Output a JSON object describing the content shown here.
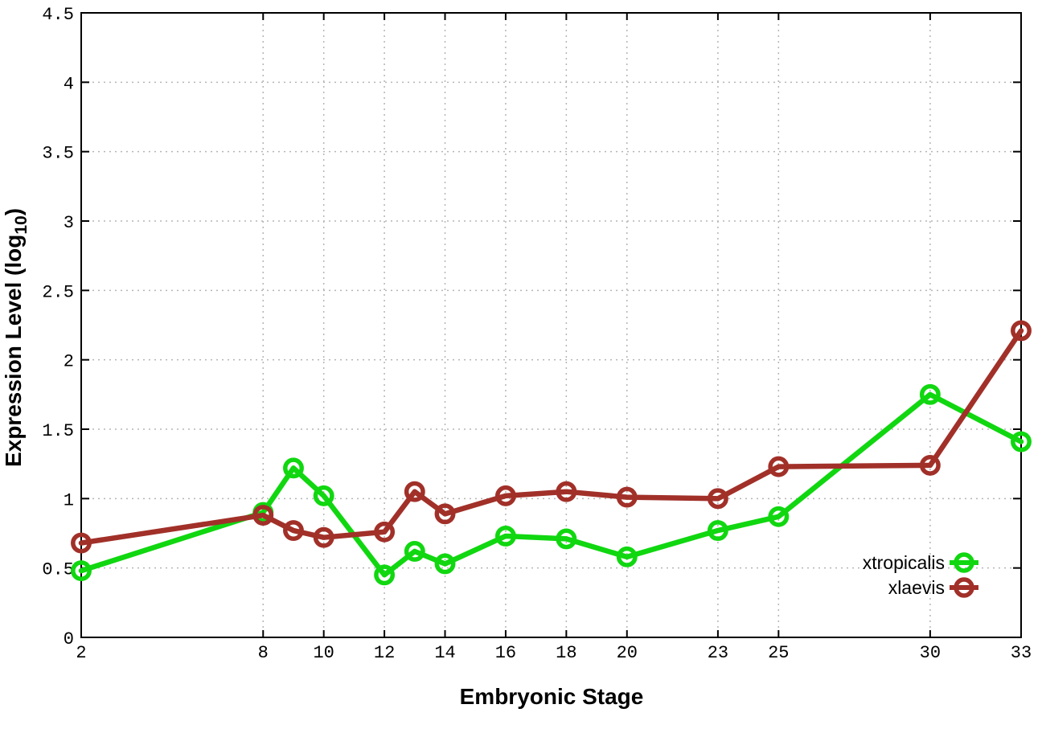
{
  "chart_data": {
    "type": "line",
    "title": "",
    "xlabel": "Embryonic Stage",
    "ylabel": "Expression Level (log10)",
    "ylabel_parts": {
      "main": "Expression Level (log",
      "sub": "10",
      "end": ")"
    },
    "xlim": [
      2,
      33
    ],
    "ylim": [
      0,
      4.5
    ],
    "xticks": [
      2,
      8,
      10,
      12,
      14,
      16,
      18,
      20,
      23,
      25,
      30,
      33
    ],
    "xtick_labels": [
      "2",
      "8",
      "10",
      "12",
      "14",
      "16",
      "18",
      "20",
      "23",
      "25",
      "30",
      "33"
    ],
    "yticks": [
      0,
      0.5,
      1,
      1.5,
      2,
      2.5,
      3,
      3.5,
      4,
      4.5
    ],
    "ytick_labels": [
      "0",
      "0.5",
      "1",
      "1.5",
      "2",
      "2.5",
      "3",
      "3.5",
      "4",
      "4.5"
    ],
    "grid": true,
    "grid_style": "dotted",
    "legend_position": "bottom-right",
    "x": [
      2,
      8,
      9,
      10,
      12,
      13,
      14,
      16,
      18,
      20,
      23,
      25,
      30,
      33
    ],
    "series": [
      {
        "name": "xtropicalis",
        "color": "#10d710",
        "marker": "open-circle",
        "values": [
          0.48,
          0.9,
          1.22,
          1.02,
          0.45,
          0.62,
          0.53,
          0.73,
          0.71,
          0.58,
          0.77,
          0.87,
          1.75,
          1.41
        ]
      },
      {
        "name": "xlaevis",
        "color": "#a13029",
        "marker": "open-circle",
        "values": [
          0.68,
          0.88,
          0.77,
          0.72,
          0.76,
          1.05,
          0.89,
          1.02,
          1.05,
          1.01,
          1.0,
          1.23,
          1.24,
          2.21
        ]
      }
    ]
  },
  "colors": {
    "background": "#ffffff",
    "axis": "#000000",
    "grid": "#b5b5b5",
    "text": "#000000"
  }
}
